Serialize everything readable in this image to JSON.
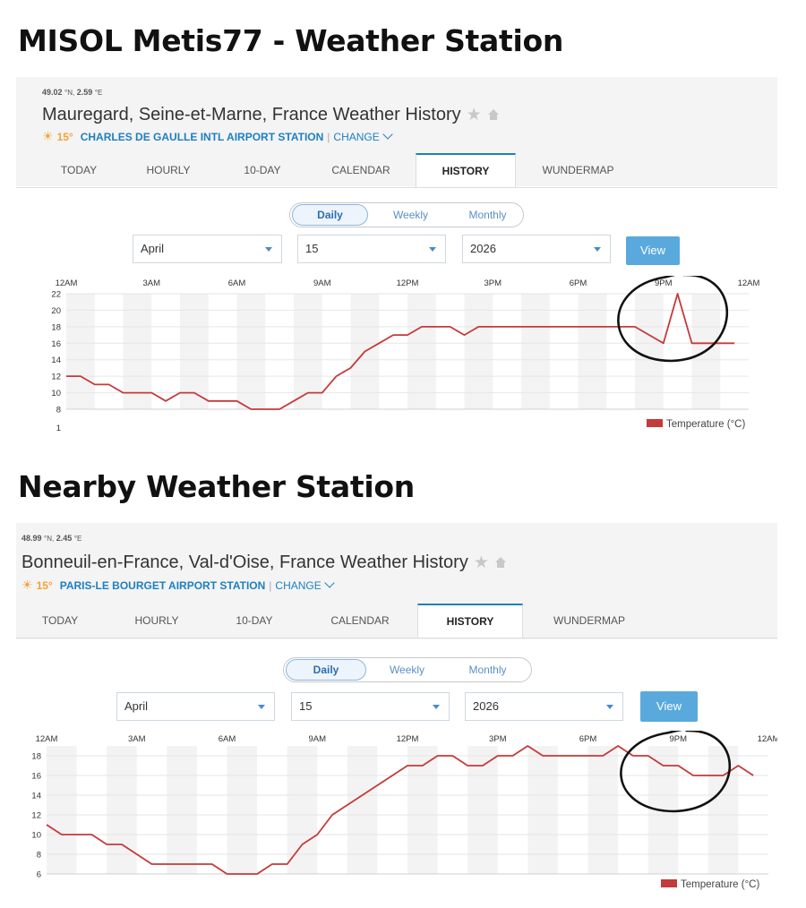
{
  "headings": {
    "top": "MISOL Metis77 - Weather Station",
    "bottom": "Nearby Weather Station"
  },
  "panels": [
    {
      "coords": {
        "lat": "49.02",
        "lat_unit": "°N,",
        "lon": "2.59",
        "lon_unit": "°E"
      },
      "location_title": "Mauregard, Seine-et-Marne, France Weather History",
      "station": {
        "icon": "sun-cloud-icon",
        "temp": "15°",
        "name": "CHARLES DE GAULLE INTL AIRPORT STATION",
        "separator": "|",
        "change": "CHANGE"
      },
      "tabs": [
        "TODAY",
        "HOURLY",
        "10-DAY",
        "CALENDAR",
        "HISTORY",
        "WUNDERMAP"
      ],
      "active_tab": "HISTORY",
      "period": {
        "options": [
          "Daily",
          "Weekly",
          "Monthly"
        ],
        "selected": "Daily"
      },
      "month": "April",
      "day": "15",
      "year": "2026",
      "view_label": "View",
      "chart_data": {
        "type": "line",
        "time_labels": [
          "12AM",
          "3AM",
          "6AM",
          "9AM",
          "12PM",
          "3PM",
          "6PM",
          "9PM",
          "12AM"
        ],
        "y_ticks": [
          22,
          20,
          18,
          16,
          14,
          12,
          10,
          8
        ],
        "y_extra_tick": "1",
        "ylim": [
          8,
          22
        ],
        "series": [
          {
            "name": "Temperature (°C)",
            "color": "#c53a3a",
            "x_hours": [
              0,
              0.5,
              1,
              1.5,
              2,
              2.5,
              3,
              3.5,
              4,
              4.5,
              5,
              5.5,
              6,
              6.5,
              7,
              7.5,
              8,
              8.5,
              9,
              9.5,
              10,
              10.5,
              11,
              11.5,
              12,
              12.5,
              13,
              13.5,
              14,
              14.5,
              15,
              15.5,
              16,
              16.5,
              17,
              17.5,
              18,
              18.5,
              19,
              19.5,
              20,
              20.5,
              21,
              21.5,
              22,
              22.5,
              23,
              23.5
            ],
            "values": [
              12,
              12,
              11,
              11,
              10,
              10,
              10,
              9,
              10,
              10,
              9,
              9,
              9,
              8,
              8,
              8,
              9,
              10,
              10,
              12,
              13,
              15,
              16,
              17,
              17,
              18,
              18,
              18,
              17,
              18,
              18,
              18,
              18,
              18,
              18,
              18,
              18,
              18,
              18,
              18,
              18,
              17,
              16,
              22,
              16,
              16,
              16,
              16
            ]
          }
        ],
        "annotation": "circle-around-9pm-spike",
        "legend_position": "bottom-right",
        "grid": "alternating-hour-bands"
      }
    },
    {
      "coords": {
        "lat": "48.99",
        "lat_unit": "°N,",
        "lon": "2.45",
        "lon_unit": "°E"
      },
      "location_title": "Bonneuil-en-France, Val-d'Oise, France Weather History",
      "station": {
        "icon": "sun-cloud-icon",
        "temp": "15°",
        "name": "PARIS-LE BOURGET AIRPORT STATION",
        "separator": "|",
        "change": "CHANGE"
      },
      "tabs": [
        "TODAY",
        "HOURLY",
        "10-DAY",
        "CALENDAR",
        "HISTORY",
        "WUNDERMAP"
      ],
      "active_tab": "HISTORY",
      "period": {
        "options": [
          "Daily",
          "Weekly",
          "Monthly"
        ],
        "selected": "Daily"
      },
      "month": "April",
      "day": "15",
      "year": "2026",
      "view_label": "View",
      "chart_data": {
        "type": "line",
        "time_labels": [
          "12AM",
          "3AM",
          "6AM",
          "9AM",
          "12PM",
          "3PM",
          "6PM",
          "9PM",
          "12AM"
        ],
        "y_ticks": [
          18,
          16,
          14,
          12,
          10,
          8,
          6
        ],
        "ylim": [
          6,
          19
        ],
        "series": [
          {
            "name": "Temperature (°C)",
            "color": "#c53a3a",
            "x_hours": [
              0,
              0.5,
              1,
              1.5,
              2,
              2.5,
              3,
              3.5,
              4,
              4.5,
              5,
              5.5,
              6,
              6.5,
              7,
              7.5,
              8,
              8.5,
              9,
              9.5,
              10,
              10.5,
              11,
              11.5,
              12,
              12.5,
              13,
              13.5,
              14,
              14.5,
              15,
              15.5,
              16,
              16.5,
              17,
              17.5,
              18,
              18.5,
              19,
              19.5,
              20,
              20.5,
              21,
              21.5,
              22,
              22.5,
              23,
              23.5
            ],
            "values": [
              11,
              10,
              10,
              10,
              9,
              9,
              8,
              7,
              7,
              7,
              7,
              7,
              6,
              6,
              6,
              7,
              7,
              9,
              10,
              12,
              13,
              14,
              15,
              16,
              17,
              17,
              18,
              18,
              17,
              17,
              18,
              18,
              19,
              18,
              18,
              18,
              18,
              18,
              19,
              18,
              18,
              17,
              17,
              16,
              16,
              16,
              17,
              16
            ]
          }
        ],
        "annotation": "circle-around-9pm-dip",
        "legend_position": "bottom-right",
        "grid": "alternating-hour-bands"
      }
    }
  ]
}
